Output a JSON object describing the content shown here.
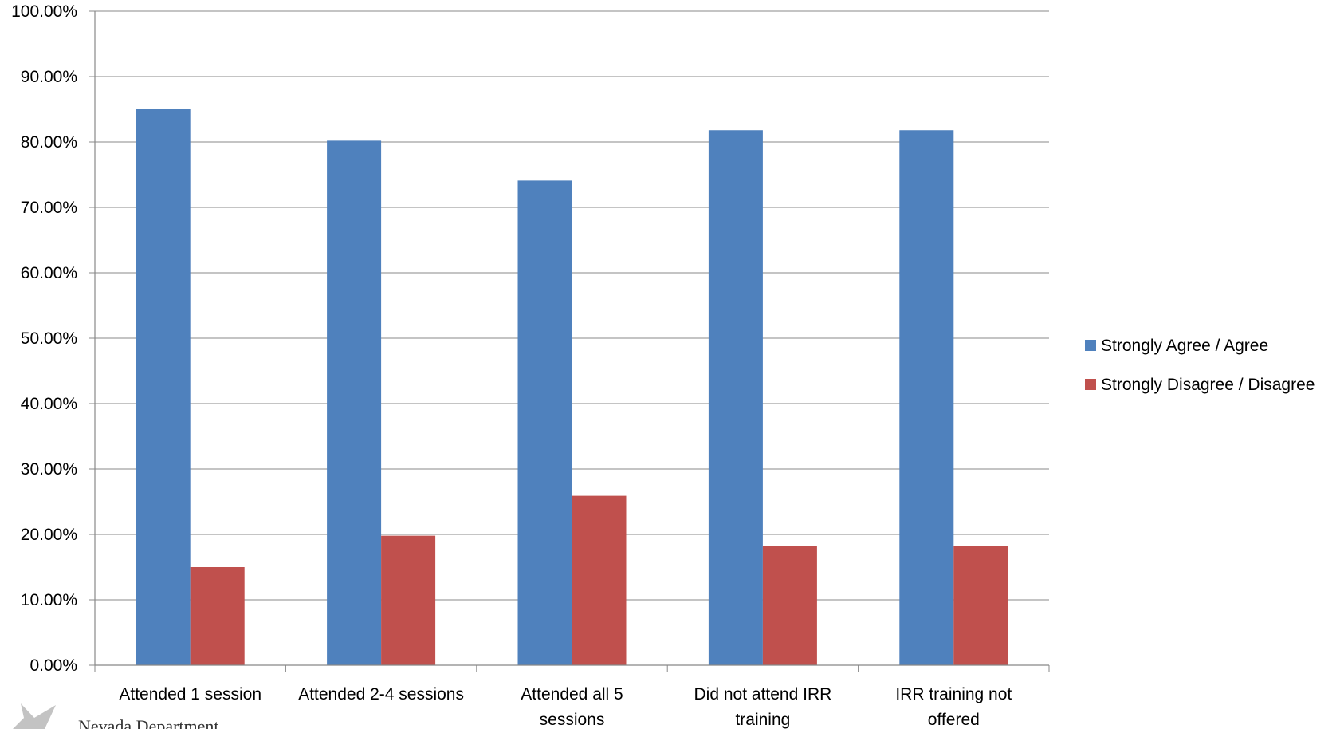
{
  "chart_data": {
    "type": "bar",
    "categories": [
      [
        "Attended 1 session"
      ],
      [
        "Attended 2-4 sessions"
      ],
      [
        "Attended all 5",
        "sessions"
      ],
      [
        "Did not attend IRR",
        "training"
      ],
      [
        "IRR training not",
        "offered"
      ]
    ],
    "series": [
      {
        "name": "Strongly Agree / Agree",
        "color": "#4F81BD",
        "values": [
          85.0,
          80.2,
          74.1,
          81.8,
          81.8
        ]
      },
      {
        "name": "Strongly Disagree / Disagree",
        "color": "#C0504D",
        "values": [
          15.0,
          19.8,
          25.9,
          18.2,
          18.2
        ]
      }
    ],
    "y_ticks": [
      "0.00%",
      "10.00%",
      "20.00%",
      "30.00%",
      "40.00%",
      "50.00%",
      "60.00%",
      "70.00%",
      "80.00%",
      "90.00%",
      "100.00%"
    ],
    "ylim": [
      0,
      100
    ],
    "grid": true,
    "legend_position": "right",
    "title": "",
    "xlabel": "",
    "ylabel": ""
  },
  "watermark": {
    "text": "Nevada Department",
    "icon": "star-logo-icon"
  }
}
